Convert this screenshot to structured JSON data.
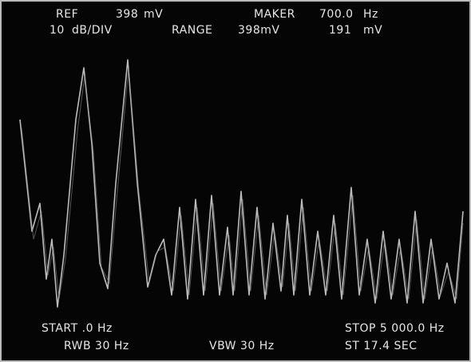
{
  "header": {
    "line1": [
      "REF",
      "398",
      "mV",
      "MAKER",
      "700.0",
      "Hz"
    ],
    "line2": [
      "10",
      "dB/DIV",
      "RANGE",
      "398mV",
      "191",
      "mV"
    ]
  },
  "footer": {
    "line1": [
      "START .0 Hz",
      "STOP 5 000.0 Hz"
    ],
    "line2": [
      "RWB 30 Hz",
      "VBW 30 Hz",
      "ST 17.4 SEC"
    ]
  }
}
